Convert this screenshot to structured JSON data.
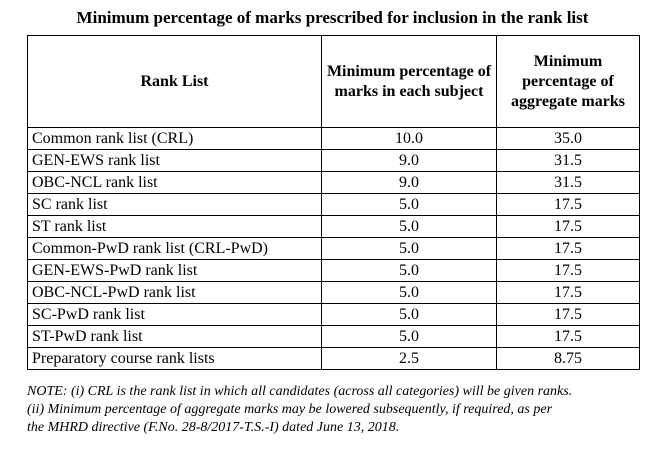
{
  "caption": "Minimum percentage of marks prescribed for inclusion in the rank list",
  "table": {
    "headers": [
      "Rank List",
      "Minimum percentage of marks in each subject",
      "Minimum percentage of aggregate marks"
    ],
    "rows": [
      {
        "rank_list": "Common rank list (CRL)",
        "each_subject": "10.0",
        "aggregate": "35.0"
      },
      {
        "rank_list": "GEN-EWS rank list",
        "each_subject": "9.0",
        "aggregate": "31.5"
      },
      {
        "rank_list": "OBC-NCL rank list",
        "each_subject": "9.0",
        "aggregate": "31.5"
      },
      {
        "rank_list": "SC rank list",
        "each_subject": "5.0",
        "aggregate": "17.5"
      },
      {
        "rank_list": "ST rank list",
        "each_subject": "5.0",
        "aggregate": "17.5"
      },
      {
        "rank_list": "Common-PwD rank list (CRL-PwD)",
        "each_subject": "5.0",
        "aggregate": "17.5"
      },
      {
        "rank_list": "GEN-EWS-PwD rank list",
        "each_subject": "5.0",
        "aggregate": "17.5"
      },
      {
        "rank_list": "OBC-NCL-PwD rank list",
        "each_subject": "5.0",
        "aggregate": "17.5"
      },
      {
        "rank_list": "SC-PwD rank list",
        "each_subject": "5.0",
        "aggregate": "17.5"
      },
      {
        "rank_list": "ST-PwD rank list",
        "each_subject": "5.0",
        "aggregate": "17.5"
      },
      {
        "rank_list": "Preparatory course rank lists",
        "each_subject": "2.5",
        "aggregate": "8.75"
      }
    ]
  },
  "note": {
    "line1": "NOTE: (i) CRL is the rank list in which all candidates (across all categories) will be given ranks.",
    "line2": "(ii) Minimum percentage of aggregate marks may be lowered subsequently, if required, as per",
    "line3": "the MHRD directive (F.No. 28-8/2017-T.S.-I) dated June 13, 2018."
  }
}
